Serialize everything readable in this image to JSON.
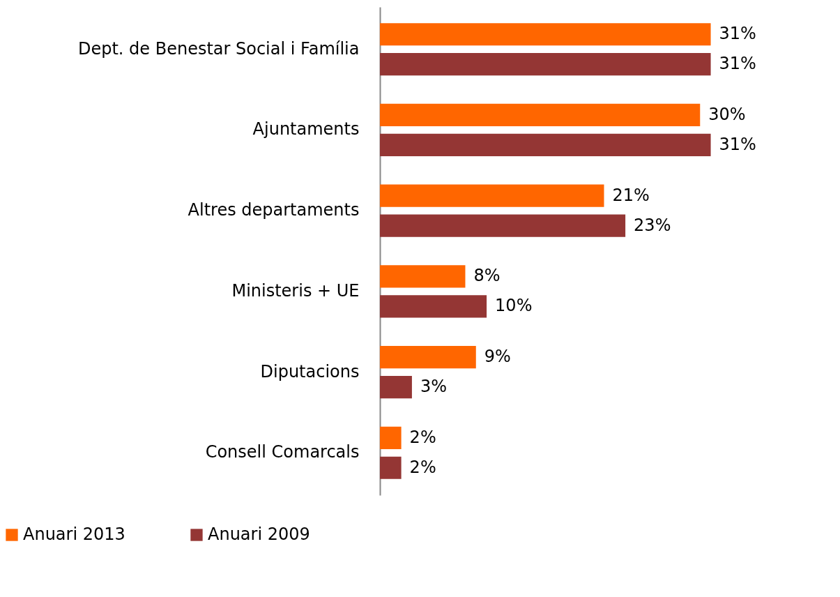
{
  "chart_data": {
    "type": "bar",
    "orientation": "horizontal",
    "categories": [
      "Dept. de Benestar Social i Família",
      "Ajuntaments",
      "Altres departaments",
      "Ministeris + UE",
      "Diputacions",
      "Consell Comarcals"
    ],
    "series": [
      {
        "name": "Anuari 2013",
        "color": "#ff6600",
        "values": [
          31,
          30,
          21,
          8,
          9,
          2
        ],
        "value_labels": [
          "31%",
          "30%",
          "21%",
          "8%",
          "9%",
          "2%"
        ]
      },
      {
        "name": "Anuari 2009",
        "color": "#943634",
        "values": [
          31,
          31,
          23,
          10,
          3,
          2
        ],
        "value_labels": [
          "31%",
          "31%",
          "23%",
          "10%",
          "3%",
          "2%"
        ]
      }
    ],
    "legend": "bottom left",
    "grid": false
  }
}
